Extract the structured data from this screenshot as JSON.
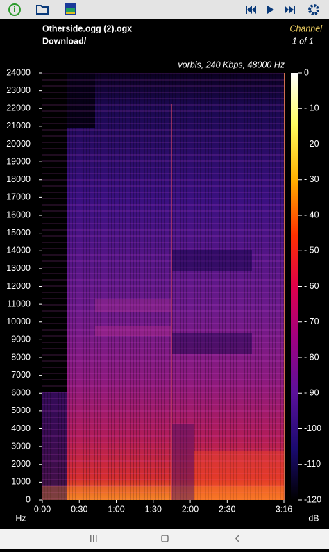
{
  "file": {
    "name": "Otherside.ogg (2).ogx",
    "folder": "Download/"
  },
  "channel": {
    "label": "Channel",
    "index": "1 of 1"
  },
  "spectrogram": {
    "info": "vorbis, 240 Kbps, 48000 Hz",
    "y_unit": "Hz",
    "ylim": [
      0,
      24000
    ],
    "yticks": [
      0,
      1000,
      2000,
      3000,
      4000,
      5000,
      6000,
      7000,
      8000,
      9000,
      10000,
      11000,
      12000,
      13000,
      14000,
      15000,
      16000,
      17000,
      18000,
      19000,
      20000,
      21000,
      22000,
      23000,
      24000
    ],
    "xlim": [
      0,
      196
    ],
    "xticks": [
      {
        "value": 0,
        "label": "0:00"
      },
      {
        "value": 30,
        "label": "0:30"
      },
      {
        "value": 60,
        "label": "1:00"
      },
      {
        "value": 90,
        "label": "1:30"
      },
      {
        "value": 120,
        "label": "2:00"
      },
      {
        "value": 150,
        "label": "2:30"
      },
      {
        "value": 196,
        "label": "3:16"
      }
    ],
    "colorbar": {
      "unit": "dB",
      "lim": [
        0,
        -120
      ],
      "ticks": [
        0,
        {
          "value": -10,
          "label": "- 10"
        },
        {
          "value": -20,
          "label": "- 20"
        },
        {
          "value": -30,
          "label": "- 30"
        },
        {
          "value": -40,
          "label": "- 40"
        },
        {
          "value": -50,
          "label": "- 50"
        },
        {
          "value": -60,
          "label": "- 60"
        },
        {
          "value": -70,
          "label": "- 70"
        },
        {
          "value": -80,
          "label": "- 80"
        },
        {
          "value": -90,
          "label": "- 90"
        },
        {
          "value": -100,
          "label": "-100"
        },
        {
          "value": -110,
          "label": "-110"
        },
        {
          "value": -120,
          "label": "-120"
        }
      ]
    }
  }
}
